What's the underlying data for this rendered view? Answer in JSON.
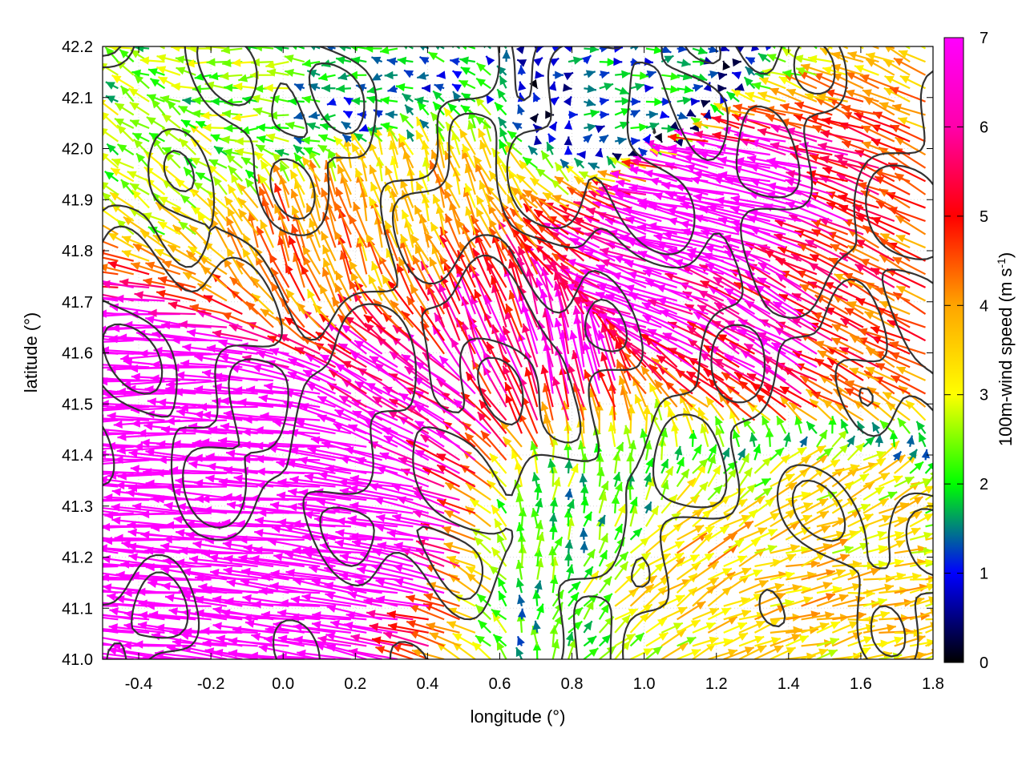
{
  "chart_data": {
    "type": "vector-field",
    "xlabel": "longitude (°)",
    "ylabel": "latitude (°)",
    "xlim": [
      -0.5,
      1.8
    ],
    "ylim": [
      41.0,
      42.2
    ],
    "x_ticks": [
      "-0.4",
      "-0.2",
      "0.0",
      "0.2",
      "0.4",
      "0.6",
      "0.8",
      "1.0",
      "1.2",
      "1.4",
      "1.6",
      "1.8"
    ],
    "x_tick_values": [
      -0.4,
      -0.2,
      0.0,
      0.2,
      0.4,
      0.6,
      0.8,
      1.0,
      1.2,
      1.4,
      1.6,
      1.8
    ],
    "y_ticks": [
      "41.0",
      "41.1",
      "41.2",
      "41.3",
      "41.4",
      "41.5",
      "41.6",
      "41.7",
      "41.8",
      "41.9",
      "42.0",
      "42.1",
      "42.2"
    ],
    "y_tick_values": [
      41.0,
      41.1,
      41.2,
      41.3,
      41.4,
      41.5,
      41.6,
      41.7,
      41.8,
      41.9,
      42.0,
      42.1,
      42.2
    ],
    "grid": true,
    "colorbar": {
      "label": "100m-wind speed (m s-1)",
      "label_main": "100m-wind speed (m s",
      "label_sup": "-1",
      "label_tail": ")",
      "min": 0,
      "max": 7,
      "ticks": [
        "0",
        "1",
        "2",
        "3",
        "4",
        "5",
        "6",
        "7"
      ],
      "tick_values": [
        0,
        1,
        2,
        3,
        4,
        5,
        6,
        7
      ],
      "palette": [
        "#000000",
        "#0000ff",
        "#00ff00",
        "#ffff00",
        "#ffa500",
        "#ff0000",
        "#ff00ff"
      ]
    },
    "contour_color": "#333333",
    "vectors": [
      {
        "lon": -0.45,
        "lat": 41.5,
        "u": -6.5,
        "v": 0.0,
        "speed": 6.5
      },
      {
        "lon": -0.3,
        "lat": 41.5,
        "u": -7.5,
        "v": 0.0,
        "speed": 7.5
      },
      {
        "lon": -0.1,
        "lat": 41.4,
        "u": -8.0,
        "v": 0.5,
        "speed": 8.1
      },
      {
        "lon": 0.0,
        "lat": 41.3,
        "u": -8.0,
        "v": 0.5,
        "speed": 8.1
      },
      {
        "lon": 0.2,
        "lat": 41.3,
        "u": -7.5,
        "v": 1.0,
        "speed": 7.6
      },
      {
        "lon": 0.4,
        "lat": 41.5,
        "u": -5.0,
        "v": 3.0,
        "speed": 5.8
      },
      {
        "lon": 0.6,
        "lat": 41.6,
        "u": -2.0,
        "v": 5.0,
        "speed": 5.4
      },
      {
        "lon": 0.8,
        "lat": 41.6,
        "u": -1.0,
        "v": 6.0,
        "speed": 6.1
      },
      {
        "lon": 1.0,
        "lat": 41.7,
        "u": -6.0,
        "v": 2.0,
        "speed": 6.3
      },
      {
        "lon": 1.2,
        "lat": 41.9,
        "u": -7.0,
        "v": 1.5,
        "speed": 7.2
      },
      {
        "lon": 1.4,
        "lat": 41.6,
        "u": -5.0,
        "v": 3.0,
        "speed": 5.8
      },
      {
        "lon": 1.6,
        "lat": 41.6,
        "u": -4.0,
        "v": 2.0,
        "speed": 4.5
      },
      {
        "lon": -0.3,
        "lat": 42.0,
        "u": -2.0,
        "v": 1.5,
        "speed": 2.5
      },
      {
        "lon": -0.1,
        "lat": 42.1,
        "u": -2.5,
        "v": 0.0,
        "speed": 2.5
      },
      {
        "lon": 0.2,
        "lat": 42.1,
        "u": -1.5,
        "v": 0.0,
        "speed": 1.5
      },
      {
        "lon": 0.3,
        "lat": 41.9,
        "u": -1.0,
        "v": 3.5,
        "speed": 3.6
      },
      {
        "lon": 0.1,
        "lat": 41.8,
        "u": -1.5,
        "v": 4.0,
        "speed": 4.3
      },
      {
        "lon": 1.0,
        "lat": 42.1,
        "u": 1.5,
        "v": 0.0,
        "speed": 1.5
      },
      {
        "lon": 0.9,
        "lat": 41.3,
        "u": 0.5,
        "v": 2.0,
        "speed": 2.1
      },
      {
        "lon": 1.1,
        "lat": 41.2,
        "u": 3.0,
        "v": 2.0,
        "speed": 3.6
      },
      {
        "lon": 1.4,
        "lat": 41.1,
        "u": 3.5,
        "v": 1.0,
        "speed": 3.6
      },
      {
        "lon": 1.6,
        "lat": 41.1,
        "u": 3.5,
        "v": 0.5,
        "speed": 3.5
      },
      {
        "lon": 1.5,
        "lat": 41.0,
        "u": 3.0,
        "v": 1.0,
        "speed": 3.2
      },
      {
        "lon": 1.5,
        "lat": 41.3,
        "u": 3.0,
        "v": 1.5,
        "speed": 3.4
      }
    ]
  }
}
